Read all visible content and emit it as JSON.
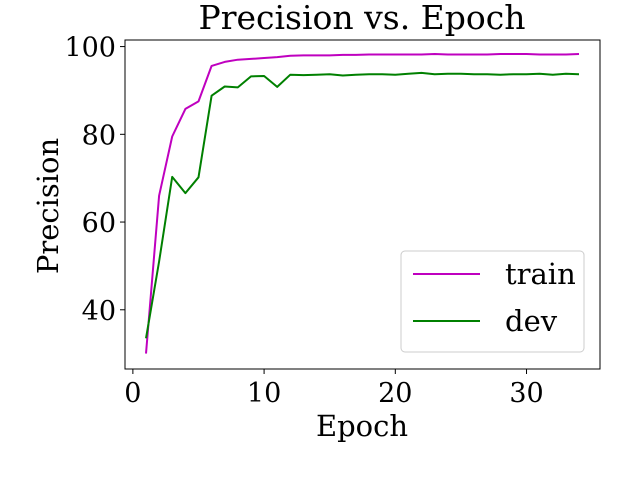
{
  "chart_data": {
    "type": "line",
    "title": "Precision vs. Epoch",
    "xlabel": "Epoch",
    "ylabel": "Precision",
    "xlim": [
      -0.6,
      35.6
    ],
    "ylim": [
      26.5,
      101.5
    ],
    "xticks": [
      0,
      10,
      20,
      30
    ],
    "yticks": [
      40,
      60,
      80,
      100
    ],
    "grid": false,
    "legend_position": "lower-right",
    "x": [
      1,
      2,
      3,
      4,
      5,
      6,
      7,
      8,
      9,
      10,
      11,
      12,
      13,
      14,
      15,
      16,
      17,
      18,
      19,
      20,
      21,
      22,
      23,
      24,
      25,
      26,
      27,
      28,
      29,
      30,
      31,
      32,
      33,
      34
    ],
    "series": [
      {
        "name": "train",
        "color": "#bf00bf",
        "values": [
          30.0,
          66.0,
          79.5,
          85.8,
          87.5,
          95.6,
          96.5,
          97.0,
          97.2,
          97.4,
          97.6,
          97.9,
          98.0,
          98.0,
          98.0,
          98.1,
          98.1,
          98.2,
          98.2,
          98.2,
          98.2,
          98.2,
          98.3,
          98.2,
          98.2,
          98.2,
          98.2,
          98.3,
          98.3,
          98.3,
          98.2,
          98.2,
          98.2,
          98.3
        ]
      },
      {
        "name": "dev",
        "color": "#008000",
        "values": [
          33.5,
          51.0,
          70.3,
          66.6,
          70.2,
          88.8,
          90.9,
          90.7,
          93.2,
          93.3,
          90.8,
          93.6,
          93.5,
          93.6,
          93.7,
          93.4,
          93.6,
          93.7,
          93.7,
          93.6,
          93.8,
          94.0,
          93.7,
          93.8,
          93.8,
          93.7,
          93.7,
          93.6,
          93.7,
          93.7,
          93.8,
          93.6,
          93.8,
          93.7
        ]
      }
    ]
  }
}
